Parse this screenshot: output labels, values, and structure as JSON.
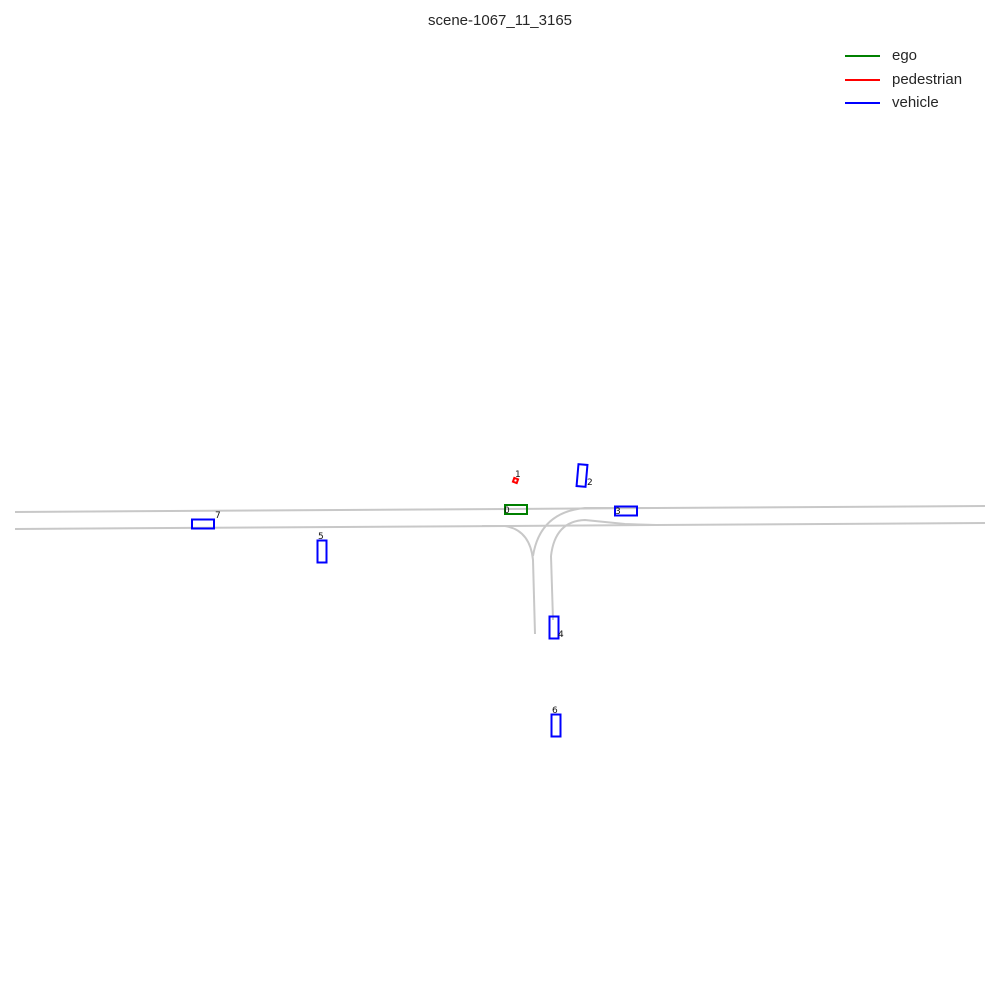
{
  "title": "scene-1067_11_3165",
  "legend": [
    {
      "label": "ego",
      "color": "#008000"
    },
    {
      "label": "pedestrian",
      "color": "#ff0000"
    },
    {
      "label": "vehicle",
      "color": "#0000ff"
    }
  ],
  "map_color": "#c8c8c8",
  "agents": [
    {
      "id": "0",
      "type": "ego"
    },
    {
      "id": "1",
      "type": "pedestrian"
    },
    {
      "id": "2",
      "type": "vehicle"
    },
    {
      "id": "3",
      "type": "vehicle"
    },
    {
      "id": "4",
      "type": "vehicle"
    },
    {
      "id": "5",
      "type": "vehicle"
    },
    {
      "id": "6",
      "type": "vehicle"
    },
    {
      "id": "7",
      "type": "vehicle"
    }
  ]
}
